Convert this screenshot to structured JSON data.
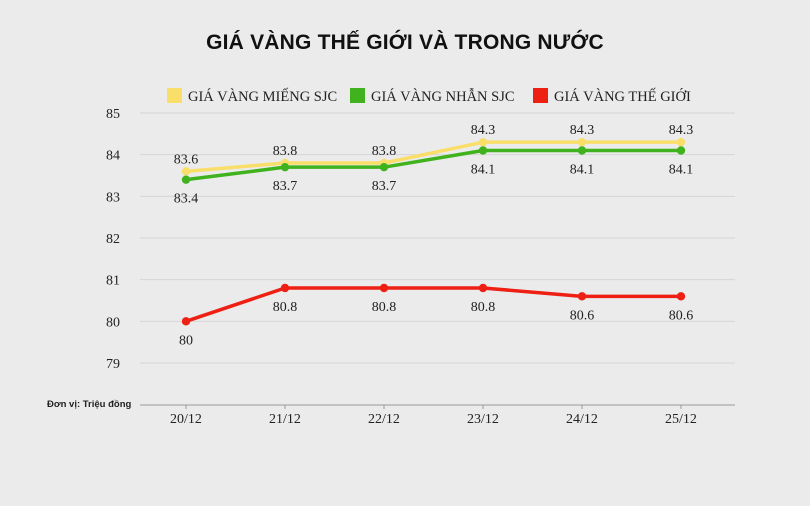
{
  "unit_note": "Đơn vị: Triệu đồng",
  "colors": {
    "mieng_sjc": "#f9de6a",
    "nhan_sjc": "#3fb21e",
    "the_gioi": "#ee2014",
    "grid": "#d6d6d6",
    "axis": "#999999"
  },
  "chart_data": {
    "type": "line",
    "title": "GIÁ VÀNG THẾ GIỚI VÀ TRONG NƯỚC",
    "categories": [
      "20/12",
      "21/12",
      "22/12",
      "23/12",
      "24/12",
      "25/12"
    ],
    "ylim": [
      79,
      85
    ],
    "yticks": [
      "79",
      "80",
      "81",
      "82",
      "83",
      "84",
      "85"
    ],
    "grid": true,
    "legend_position": "top",
    "series": [
      {
        "name": "GIÁ VÀNG MIẾNG SJC",
        "color": "#f9de6a",
        "values": [
          83.6,
          83.8,
          83.8,
          84.3,
          84.3,
          84.3
        ],
        "labels": [
          "83.6",
          "83.8",
          "83.8",
          "84.3",
          "84.3",
          "84.3"
        ],
        "label_position": "above"
      },
      {
        "name": "GIÁ VÀNG NHẪN SJC",
        "color": "#3fb21e",
        "values": [
          83.4,
          83.7,
          83.7,
          84.1,
          84.1,
          84.1
        ],
        "labels": [
          "83.4",
          "83.7",
          "83.7",
          "84.1",
          "84.1",
          "84.1"
        ],
        "label_position": "below"
      },
      {
        "name": "GIÁ VÀNG THẾ GIỚI",
        "color": "#ee2014",
        "values": [
          80.0,
          80.8,
          80.8,
          80.8,
          80.6,
          80.6
        ],
        "labels": [
          "80",
          "80.8",
          "80.8",
          "80.8",
          "80.6",
          "80.6"
        ],
        "label_position": "below"
      }
    ]
  }
}
